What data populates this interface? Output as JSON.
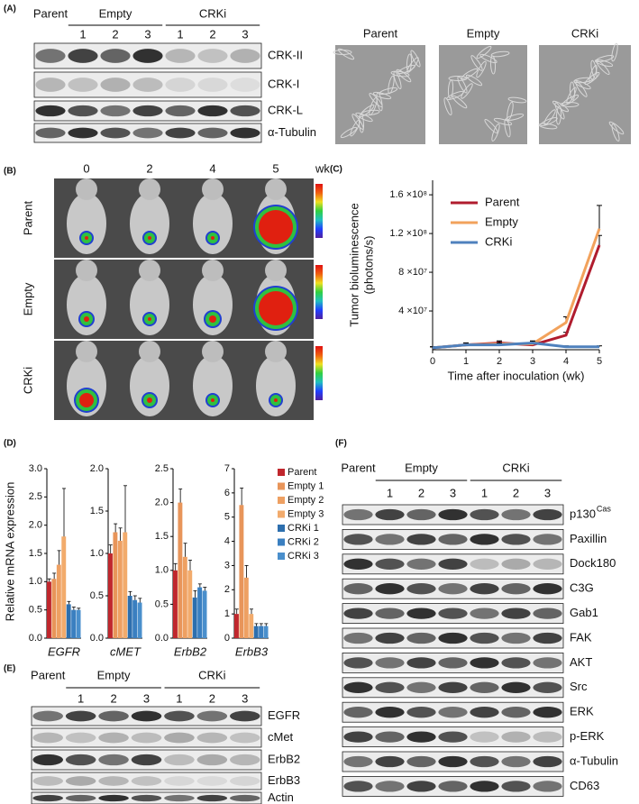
{
  "panel_labels": [
    "(A)",
    "(B)",
    "(C)",
    "(D)",
    "(E)",
    "(F)"
  ],
  "panel_a": {
    "groups": [
      "Parent",
      "Empty",
      "CRKi"
    ],
    "lanes": [
      "1",
      "2",
      "3",
      "1",
      "2",
      "3"
    ],
    "bands": [
      "CRK-II",
      "CRK-I",
      "CRK-L",
      "α-Tubulin"
    ],
    "image_labels": [
      "Parent",
      "Empty",
      "CRKi"
    ]
  },
  "panel_b": {
    "weeks": [
      "0",
      "2",
      "4",
      "5"
    ],
    "unit": "wk",
    "rows": [
      "Parent",
      "Empty",
      "CRKi"
    ]
  },
  "panel_e": {
    "groups": [
      "Parent",
      "Empty",
      "CRKi"
    ],
    "lanes": [
      "1",
      "2",
      "3",
      "1",
      "2",
      "3"
    ],
    "bands": [
      "EGFR",
      "cMet",
      "ErbB2",
      "ErbB3",
      "Actin"
    ]
  },
  "panel_f": {
    "groups": [
      "Parent",
      "Empty",
      "CRKi"
    ],
    "lanes": [
      "1",
      "2",
      "3",
      "1",
      "2",
      "3"
    ],
    "bands": [
      "p130",
      "Paxillin",
      "Dock180",
      "C3G",
      "Gab1",
      "FAK",
      "AKT",
      "Src",
      "ERK",
      "p-ERK",
      "α-Tubulin",
      "CD63"
    ],
    "superscript": "Cas"
  },
  "chart_data": [
    {
      "type": "line",
      "ylabel": "Tumor bioluminescence",
      "ylabel_unit": "(photons/s)",
      "xlabel": "Time after inoculation (wk)",
      "x": [
        0,
        1,
        2,
        3,
        4,
        5
      ],
      "xlim": [
        0,
        5
      ],
      "xticks": [
        0,
        1,
        2,
        3,
        4,
        5
      ],
      "ylim": [
        0,
        175000000
      ],
      "yticks": [
        {
          "value": 40000000,
          "label": "4 ×10⁷"
        },
        {
          "value": 80000000,
          "label": "8 ×10⁷"
        },
        {
          "value": 120000000,
          "label": "1.2 ×10⁸"
        },
        {
          "value": 160000000,
          "label": "1.6 ×10⁸"
        }
      ],
      "legend": "upper left",
      "series": [
        {
          "name": "Parent",
          "color": "#b01c2e",
          "values": [
            2000000,
            5000000,
            7000000,
            5000000,
            15000000,
            108000000
          ],
          "errors": [
            1000000,
            2000000,
            2000000,
            2000000,
            3000000,
            10000000
          ]
        },
        {
          "name": "Empty",
          "color": "#f2a25c",
          "values": [
            2000000,
            5000000,
            6000000,
            6000000,
            28000000,
            125000000
          ],
          "errors": [
            1000000,
            2000000,
            3000000,
            3000000,
            6000000,
            24000000
          ]
        },
        {
          "name": "CRKi",
          "color": "#4f81bd",
          "values": [
            2000000,
            5000000,
            5000000,
            7000000,
            3000000,
            3000000
          ],
          "errors": [
            1000000,
            2000000,
            2000000,
            2000000,
            1000000,
            1000000
          ]
        }
      ]
    },
    {
      "type": "bar",
      "ylabel": "Relative mRNA expression",
      "categories": [
        "EGFR",
        "cMET",
        "ErbB2",
        "ErbB3"
      ],
      "subplots": [
        {
          "ylim": [
            0,
            3
          ],
          "yticks": [
            {
              "value": 0,
              "label": "0.0"
            },
            {
              "value": 0.5,
              "label": "0.5"
            },
            {
              "value": 1,
              "label": "1.0"
            },
            {
              "value": 1.5,
              "label": "1.5"
            },
            {
              "value": 2,
              "label": "2.0"
            },
            {
              "value": 2.5,
              "label": "2.5"
            },
            {
              "value": 3,
              "label": "3.0"
            }
          ]
        },
        {
          "ylim": [
            0,
            2
          ],
          "yticks": [
            {
              "value": 0,
              "label": "0.0"
            },
            {
              "value": 0.5,
              "label": "0.5"
            },
            {
              "value": 1,
              "label": "1.0"
            },
            {
              "value": 1.5,
              "label": "1.5"
            },
            {
              "value": 2,
              "label": "2.0"
            }
          ]
        },
        {
          "ylim": [
            0,
            2.5
          ],
          "yticks": [
            {
              "value": 0,
              "label": "0.0"
            },
            {
              "value": 0.5,
              "label": "0.5"
            },
            {
              "value": 1,
              "label": "1.0"
            },
            {
              "value": 1.5,
              "label": "1.5"
            },
            {
              "value": 2,
              "label": "2.0"
            },
            {
              "value": 2.5,
              "label": "2.5"
            }
          ]
        },
        {
          "ylim": [
            0,
            7
          ],
          "yticks": [
            0,
            1,
            2,
            3,
            4,
            5,
            6,
            7
          ]
        }
      ],
      "series": [
        {
          "name": "Parent",
          "color": "#c0272d",
          "values": [
            1.0,
            1.0,
            1.0,
            1.0
          ],
          "errors": [
            0.05,
            0.1,
            0.1,
            0.2
          ]
        },
        {
          "name": "Empty 1",
          "color": "#e8955a",
          "values": [
            1.05,
            1.25,
            2.0,
            5.5
          ],
          "errors": [
            0.1,
            0.1,
            0.2,
            0.7
          ]
        },
        {
          "name": "Empty 2",
          "color": "#eea062",
          "values": [
            1.3,
            1.15,
            1.2,
            2.5
          ],
          "errors": [
            0.25,
            0.15,
            0.2,
            0.5
          ]
        },
        {
          "name": "Empty 3",
          "color": "#f2ab6c",
          "values": [
            1.8,
            1.25,
            1.0,
            1.0
          ],
          "errors": [
            0.85,
            0.55,
            0.15,
            0.2
          ]
        },
        {
          "name": "CRKi 1",
          "color": "#2d6fae",
          "values": [
            0.6,
            0.5,
            0.6,
            0.5
          ],
          "errors": [
            0.05,
            0.05,
            0.1,
            0.1
          ]
        },
        {
          "name": "CRKi 2",
          "color": "#3a7fc0",
          "values": [
            0.5,
            0.45,
            0.75,
            0.5
          ],
          "errors": [
            0.05,
            0.05,
            0.05,
            0.1
          ]
        },
        {
          "name": "CRKi 3",
          "color": "#4a8fcc",
          "values": [
            0.5,
            0.42,
            0.7,
            0.5
          ],
          "errors": [
            0.03,
            0.05,
            0.05,
            0.1
          ]
        }
      ]
    }
  ]
}
